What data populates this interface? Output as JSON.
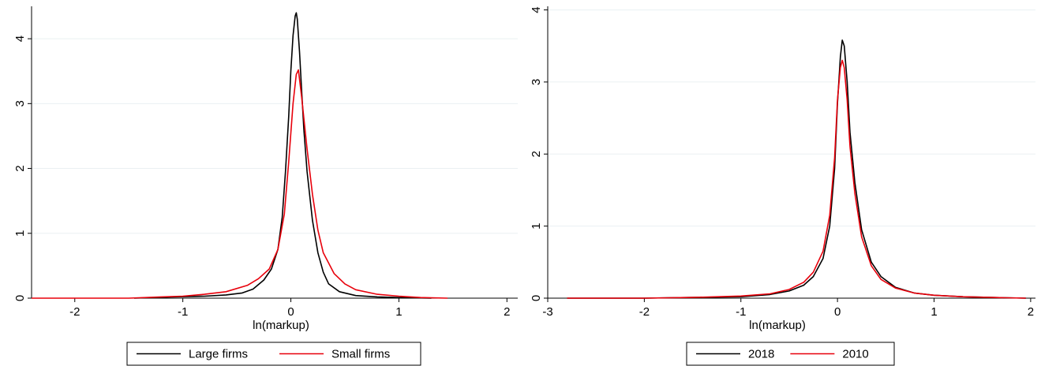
{
  "chart_data": [
    {
      "type": "line",
      "xlabel": "ln(markup)",
      "ylabel": "",
      "xlim": [
        -2.4,
        2.1
      ],
      "ylim": [
        0,
        4.5
      ],
      "xticks": [
        -2,
        -1,
        0,
        1,
        2
      ],
      "yticks": [
        0,
        1,
        2,
        3,
        4
      ],
      "grid": true,
      "legend_position": "bottom",
      "series": [
        {
          "name": "Large firms",
          "color": "#000000",
          "x": [
            -1.45,
            -1.1,
            -0.8,
            -0.6,
            -0.45,
            -0.35,
            -0.25,
            -0.18,
            -0.12,
            -0.08,
            -0.05,
            -0.02,
            0.0,
            0.02,
            0.04,
            0.05,
            0.06,
            0.08,
            0.1,
            0.12,
            0.15,
            0.2,
            0.25,
            0.3,
            0.35,
            0.45,
            0.6,
            0.8,
            1.0,
            1.3
          ],
          "y": [
            0.0,
            0.02,
            0.03,
            0.05,
            0.08,
            0.14,
            0.28,
            0.45,
            0.75,
            1.25,
            1.95,
            2.8,
            3.5,
            4.05,
            4.35,
            4.4,
            4.3,
            3.8,
            3.2,
            2.6,
            1.95,
            1.2,
            0.7,
            0.4,
            0.22,
            0.1,
            0.04,
            0.02,
            0.01,
            0.0
          ]
        },
        {
          "name": "Small firms",
          "color": "#e8000b",
          "x": [
            -2.4,
            -1.5,
            -1.2,
            -1.0,
            -0.8,
            -0.6,
            -0.4,
            -0.3,
            -0.2,
            -0.12,
            -0.06,
            -0.02,
            0.02,
            0.05,
            0.07,
            0.1,
            0.15,
            0.2,
            0.25,
            0.3,
            0.4,
            0.5,
            0.6,
            0.8,
            1.0,
            1.2,
            1.45
          ],
          "y": [
            0.0,
            0.0,
            0.02,
            0.03,
            0.06,
            0.1,
            0.2,
            0.3,
            0.45,
            0.75,
            1.3,
            2.1,
            3.0,
            3.45,
            3.52,
            3.1,
            2.3,
            1.6,
            1.05,
            0.7,
            0.38,
            0.22,
            0.13,
            0.06,
            0.03,
            0.01,
            0.0
          ]
        }
      ]
    },
    {
      "type": "line",
      "xlabel": "ln(markup)",
      "ylabel": "",
      "xlim": [
        -3.0,
        2.05
      ],
      "ylim": [
        0,
        4.05
      ],
      "xticks": [
        -3,
        -2,
        -1,
        0,
        1,
        2
      ],
      "yticks": [
        0,
        1,
        2,
        3,
        4
      ],
      "grid": true,
      "legend_position": "bottom",
      "series": [
        {
          "name": "2018",
          "color": "#000000",
          "x": [
            -2.8,
            -2.0,
            -1.5,
            -1.0,
            -0.7,
            -0.5,
            -0.35,
            -0.25,
            -0.15,
            -0.08,
            -0.03,
            0.0,
            0.03,
            0.05,
            0.07,
            0.1,
            0.13,
            0.18,
            0.25,
            0.35,
            0.45,
            0.6,
            0.8,
            1.0,
            1.3,
            1.6,
            1.95
          ],
          "y": [
            0.0,
            0.0,
            0.01,
            0.02,
            0.05,
            0.1,
            0.18,
            0.3,
            0.55,
            1.0,
            1.8,
            2.7,
            3.35,
            3.58,
            3.5,
            3.0,
            2.3,
            1.6,
            0.95,
            0.5,
            0.3,
            0.15,
            0.07,
            0.04,
            0.02,
            0.01,
            0.0
          ]
        },
        {
          "name": "2010",
          "color": "#e8000b",
          "x": [
            -2.8,
            -2.0,
            -1.5,
            -1.0,
            -0.7,
            -0.5,
            -0.35,
            -0.25,
            -0.15,
            -0.08,
            -0.03,
            0.0,
            0.03,
            0.05,
            0.07,
            0.1,
            0.13,
            0.18,
            0.25,
            0.35,
            0.45,
            0.6,
            0.8,
            1.0,
            1.3,
            1.6,
            1.95
          ],
          "y": [
            0.0,
            0.0,
            0.01,
            0.03,
            0.06,
            0.12,
            0.22,
            0.36,
            0.65,
            1.15,
            1.95,
            2.75,
            3.2,
            3.3,
            3.2,
            2.75,
            2.1,
            1.45,
            0.85,
            0.45,
            0.26,
            0.14,
            0.07,
            0.04,
            0.02,
            0.01,
            0.0
          ]
        }
      ]
    }
  ]
}
